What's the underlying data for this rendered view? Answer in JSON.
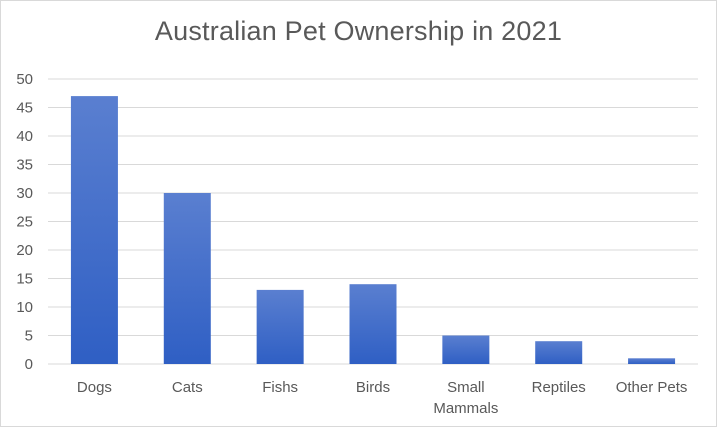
{
  "chart_data": {
    "type": "bar",
    "title": "Australian Pet Ownership in 2021",
    "categories": [
      [
        "Dogs"
      ],
      [
        "Cats"
      ],
      [
        "Fishs"
      ],
      [
        "Birds"
      ],
      [
        "Small",
        "Mammals"
      ],
      [
        "Reptiles"
      ],
      [
        "Other Pets"
      ]
    ],
    "values": [
      47,
      30,
      13,
      14,
      5,
      4,
      1
    ],
    "ylim": [
      0,
      50
    ],
    "yticks": [
      0,
      5,
      10,
      15,
      20,
      25,
      30,
      35,
      40,
      45,
      50
    ],
    "grid": true,
    "colors": {
      "bar_top": "#5a7fd0",
      "bar_bottom": "#2f5fc4",
      "grid": "#d9d9d9",
      "text": "#595959"
    }
  }
}
